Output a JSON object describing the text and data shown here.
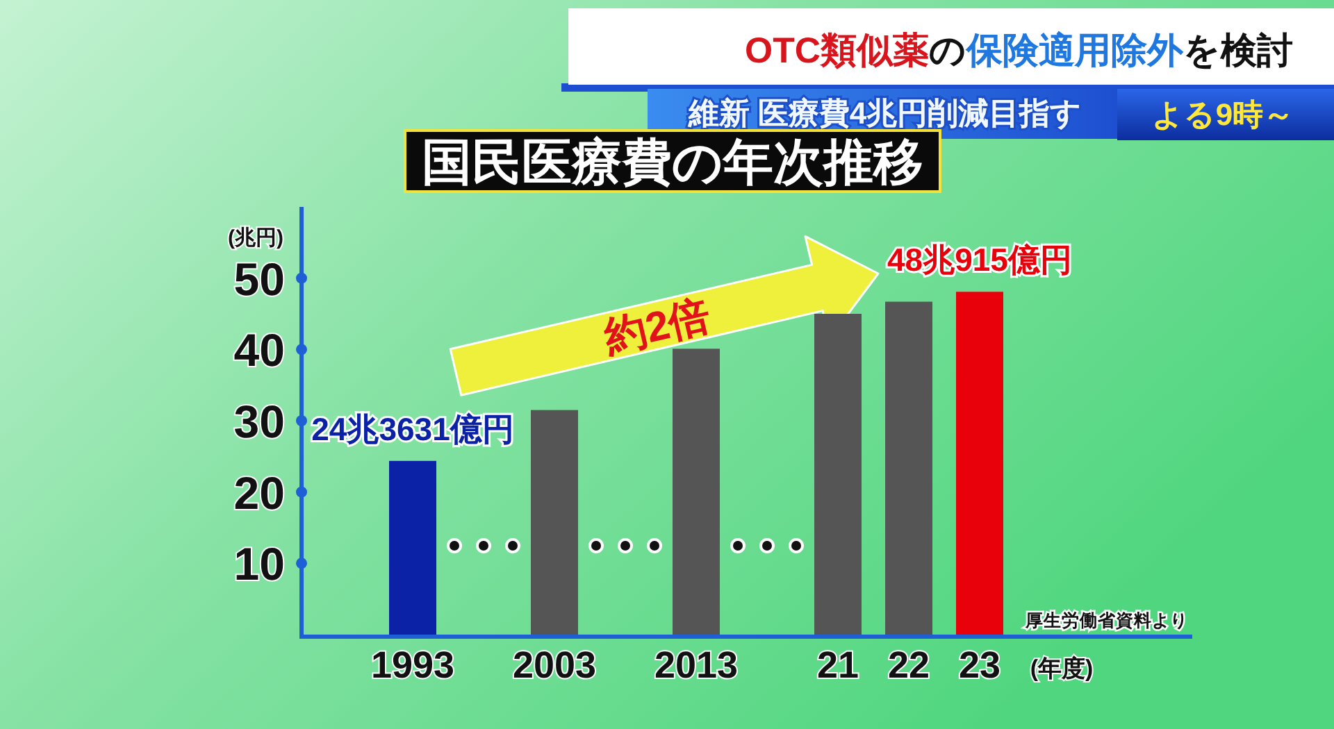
{
  "chart_data": {
    "type": "bar",
    "title": "国民医療費の年次推移",
    "xlabel": "(年度)",
    "ylabel": "(兆円)",
    "categories": [
      "1993",
      "2003",
      "2013",
      "21",
      "22",
      "23"
    ],
    "values": [
      24.3631,
      31.5,
      40.1,
      45,
      46.7,
      48.0915
    ],
    "colors": [
      "#0b22a6",
      "#555555",
      "#555555",
      "#555555",
      "#555555",
      "#e8000b"
    ],
    "value_labels": [
      "24兆3631億円",
      null,
      null,
      null,
      null,
      "48兆915億円"
    ],
    "ylim": [
      0,
      60
    ],
    "yticks": [
      10,
      20,
      30,
      40,
      50
    ],
    "annotations": [
      "OTC類似薬",
      "の",
      "保険適用除外",
      "を検討",
      "維新 医療費4兆円削減目指す",
      "よる9時～",
      "約2倍",
      "厚生労働省資料より"
    ]
  }
}
